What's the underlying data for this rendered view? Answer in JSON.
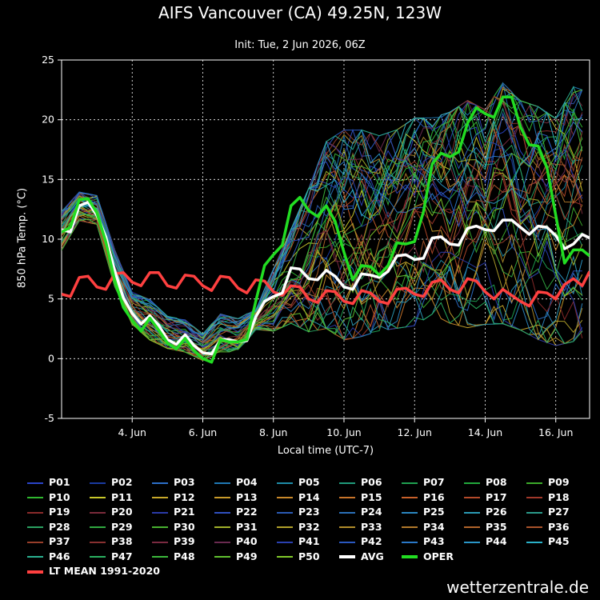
{
  "title": "AIFS Vancouver (CA) 49.25N, 123W",
  "subtitle": "Init: Tue, 2 Jun 2026, 06Z",
  "footer": "wetterzentrale.de",
  "chart_data": {
    "type": "line",
    "xlabel": "Local time (UTC-7)",
    "ylabel": "850 hPa Temp. (°C)",
    "x_start": "2026-06-02T00:00",
    "x_end": "2026-06-16T23:00",
    "x_ticks": [
      "4. Jun",
      "6. Jun",
      "8. Jun",
      "10. Jun",
      "12. Jun",
      "14. Jun",
      "16. Jun"
    ],
    "x_tick_dates": [
      "2026-06-04T00:00",
      "2026-06-06T00:00",
      "2026-06-08T00:00",
      "2026-06-10T00:00",
      "2026-06-12T00:00",
      "2026-06-14T00:00",
      "2026-06-16T00:00"
    ],
    "ylim": [
      -5,
      25
    ],
    "y_ticks": [
      -5,
      0,
      5,
      10,
      15,
      20,
      25
    ],
    "grid": "dashed",
    "legend_position": "bottom",
    "highlight_series": [
      {
        "name": "LT MEAN 1991-2020",
        "color": "#ff4040",
        "x": [
          "2026-06-02T00:00",
          "2026-06-02T06:00",
          "2026-06-02T12:00",
          "2026-06-02T18:00",
          "2026-06-03T00:00",
          "2026-06-03T06:00",
          "2026-06-03T12:00",
          "2026-06-03T18:00",
          "2026-06-04T00:00",
          "2026-06-04T06:00",
          "2026-06-04T12:00",
          "2026-06-04T18:00",
          "2026-06-05T00:00",
          "2026-06-05T06:00",
          "2026-06-05T12:00",
          "2026-06-05T18:00",
          "2026-06-06T00:00",
          "2026-06-06T06:00",
          "2026-06-06T12:00",
          "2026-06-06T18:00",
          "2026-06-07T00:00",
          "2026-06-07T06:00",
          "2026-06-07T12:00",
          "2026-06-07T18:00",
          "2026-06-08T00:00",
          "2026-06-08T06:00",
          "2026-06-08T12:00",
          "2026-06-08T18:00",
          "2026-06-09T00:00",
          "2026-06-09T06:00",
          "2026-06-09T12:00",
          "2026-06-09T18:00",
          "2026-06-10T00:00",
          "2026-06-10T06:00",
          "2026-06-10T12:00",
          "2026-06-10T18:00",
          "2026-06-11T00:00",
          "2026-06-11T06:00",
          "2026-06-11T12:00",
          "2026-06-11T18:00",
          "2026-06-12T00:00",
          "2026-06-12T06:00",
          "2026-06-12T12:00",
          "2026-06-12T18:00",
          "2026-06-13T00:00",
          "2026-06-13T06:00",
          "2026-06-13T12:00",
          "2026-06-13T18:00",
          "2026-06-14T00:00",
          "2026-06-14T06:00",
          "2026-06-14T12:00",
          "2026-06-14T18:00",
          "2026-06-15T00:00",
          "2026-06-15T06:00",
          "2026-06-15T12:00",
          "2026-06-15T18:00",
          "2026-06-16T00:00",
          "2026-06-16T06:00",
          "2026-06-16T12:00",
          "2026-06-16T18:00",
          "2026-06-16T23:00"
        ],
        "y": [
          5.4,
          5.2,
          6.8,
          6.9,
          6.0,
          5.8,
          7.1,
          7.2,
          6.4,
          6.1,
          7.2,
          7.2,
          6.1,
          5.9,
          7.0,
          6.9,
          6.1,
          5.7,
          6.9,
          6.8,
          5.9,
          5.5,
          6.6,
          6.5,
          5.6,
          5.3,
          6.1,
          6.0,
          5.0,
          4.7,
          5.7,
          5.6,
          4.8,
          4.6,
          5.7,
          5.5,
          4.8,
          4.6,
          5.8,
          5.9,
          5.4,
          5.2,
          6.4,
          6.6,
          5.8,
          5.5,
          6.7,
          6.5,
          5.6,
          5.0,
          5.8,
          5.3,
          4.8,
          4.4,
          5.6,
          5.5,
          5.0,
          6.2,
          6.7,
          6.1,
          7.3
        ]
      },
      {
        "name": "AVG",
        "color": "#ffffff",
        "x": [
          "2026-06-02T00:00",
          "2026-06-02T06:00",
          "2026-06-02T12:00",
          "2026-06-02T18:00",
          "2026-06-03T00:00",
          "2026-06-03T06:00",
          "2026-06-03T12:00",
          "2026-06-03T18:00",
          "2026-06-04T00:00",
          "2026-06-04T06:00",
          "2026-06-04T12:00",
          "2026-06-04T18:00",
          "2026-06-05T00:00",
          "2026-06-05T06:00",
          "2026-06-05T12:00",
          "2026-06-05T18:00",
          "2026-06-06T00:00",
          "2026-06-06T06:00",
          "2026-06-06T12:00",
          "2026-06-06T18:00",
          "2026-06-07T00:00",
          "2026-06-07T06:00",
          "2026-06-07T12:00",
          "2026-06-07T18:00",
          "2026-06-08T00:00",
          "2026-06-08T06:00",
          "2026-06-08T12:00",
          "2026-06-08T18:00",
          "2026-06-09T00:00",
          "2026-06-09T06:00",
          "2026-06-09T12:00",
          "2026-06-09T18:00",
          "2026-06-10T00:00",
          "2026-06-10T06:00",
          "2026-06-10T12:00",
          "2026-06-10T18:00",
          "2026-06-11T00:00",
          "2026-06-11T06:00",
          "2026-06-11T12:00",
          "2026-06-11T18:00",
          "2026-06-12T00:00",
          "2026-06-12T06:00",
          "2026-06-12T12:00",
          "2026-06-12T18:00",
          "2026-06-13T00:00",
          "2026-06-13T06:00",
          "2026-06-13T12:00",
          "2026-06-13T18:00",
          "2026-06-14T00:00",
          "2026-06-14T06:00",
          "2026-06-14T12:00",
          "2026-06-14T18:00",
          "2026-06-15T00:00",
          "2026-06-15T06:00",
          "2026-06-15T12:00",
          "2026-06-15T18:00",
          "2026-06-16T00:00",
          "2026-06-16T06:00",
          "2026-06-16T12:00",
          "2026-06-16T18:00",
          "2026-06-16T23:00"
        ],
        "y": [
          10.8,
          10.6,
          12.8,
          13.1,
          12.0,
          10.2,
          7.4,
          5.1,
          3.8,
          2.9,
          3.6,
          2.8,
          1.6,
          1.2,
          2.0,
          1.1,
          0.5,
          0.4,
          1.6,
          1.6,
          1.4,
          1.5,
          3.5,
          4.8,
          5.2,
          5.5,
          7.6,
          7.5,
          6.7,
          6.6,
          7.4,
          6.9,
          6.0,
          5.8,
          7.1,
          7.0,
          6.8,
          7.3,
          8.6,
          8.7,
          8.3,
          8.4,
          10.1,
          10.2,
          9.6,
          9.5,
          10.9,
          11.1,
          10.8,
          10.7,
          11.6,
          11.6,
          11.0,
          10.4,
          11.1,
          11.0,
          10.3,
          9.2,
          9.6,
          10.4,
          10.1
        ]
      },
      {
        "name": "OPER",
        "color": "#22dd22",
        "x": [
          "2026-06-02T00:00",
          "2026-06-02T06:00",
          "2026-06-02T12:00",
          "2026-06-02T18:00",
          "2026-06-03T00:00",
          "2026-06-03T06:00",
          "2026-06-03T12:00",
          "2026-06-03T18:00",
          "2026-06-04T00:00",
          "2026-06-04T06:00",
          "2026-06-04T12:00",
          "2026-06-04T18:00",
          "2026-06-05T00:00",
          "2026-06-05T06:00",
          "2026-06-05T12:00",
          "2026-06-05T18:00",
          "2026-06-06T00:00",
          "2026-06-06T06:00",
          "2026-06-06T12:00",
          "2026-06-06T18:00",
          "2026-06-07T00:00",
          "2026-06-07T06:00",
          "2026-06-07T12:00",
          "2026-06-07T18:00",
          "2026-06-08T00:00",
          "2026-06-08T06:00",
          "2026-06-08T12:00",
          "2026-06-08T18:00",
          "2026-06-09T00:00",
          "2026-06-09T06:00",
          "2026-06-09T12:00",
          "2026-06-09T18:00",
          "2026-06-10T00:00",
          "2026-06-10T06:00",
          "2026-06-10T12:00",
          "2026-06-10T18:00",
          "2026-06-11T00:00",
          "2026-06-11T06:00",
          "2026-06-11T12:00",
          "2026-06-11T18:00",
          "2026-06-12T00:00",
          "2026-06-12T06:00",
          "2026-06-12T12:00",
          "2026-06-12T18:00",
          "2026-06-13T00:00",
          "2026-06-13T06:00",
          "2026-06-13T12:00",
          "2026-06-13T18:00",
          "2026-06-14T00:00",
          "2026-06-14T06:00",
          "2026-06-14T12:00",
          "2026-06-14T18:00",
          "2026-06-15T00:00",
          "2026-06-15T06:00",
          "2026-06-15T12:00",
          "2026-06-15T18:00",
          "2026-06-16T00:00",
          "2026-06-16T06:00",
          "2026-06-16T12:00",
          "2026-06-16T18:00",
          "2026-06-16T23:00"
        ],
        "y": [
          10.6,
          11.0,
          13.3,
          13.4,
          12.2,
          9.8,
          6.6,
          4.3,
          3.2,
          2.3,
          3.4,
          2.4,
          1.3,
          0.8,
          1.7,
          0.7,
          0.0,
          -0.3,
          1.6,
          1.4,
          1.4,
          1.6,
          4.8,
          7.8,
          8.7,
          9.5,
          12.8,
          13.5,
          12.4,
          11.9,
          12.8,
          11.5,
          8.9,
          6.6,
          7.8,
          7.7,
          7.0,
          7.8,
          9.7,
          9.6,
          9.8,
          12.3,
          16.3,
          17.2,
          16.9,
          17.3,
          19.7,
          21.0,
          20.5,
          20.2,
          21.9,
          21.9,
          19.4,
          17.9,
          17.8,
          16.0,
          12.0,
          8.0,
          9.1,
          9.1,
          8.6
        ]
      }
    ],
    "ensemble_envelope": {
      "x": [
        "2026-06-02T00:00",
        "2026-06-02T12:00",
        "2026-06-03T00:00",
        "2026-06-03T12:00",
        "2026-06-04T00:00",
        "2026-06-04T12:00",
        "2026-06-05T00:00",
        "2026-06-05T12:00",
        "2026-06-06T00:00",
        "2026-06-06T12:00",
        "2026-06-07T00:00",
        "2026-06-07T12:00",
        "2026-06-08T00:00",
        "2026-06-08T12:00",
        "2026-06-09T00:00",
        "2026-06-09T12:00",
        "2026-06-10T00:00",
        "2026-06-10T12:00",
        "2026-06-11T00:00",
        "2026-06-11T12:00",
        "2026-06-12T00:00",
        "2026-06-12T12:00",
        "2026-06-13T00:00",
        "2026-06-13T12:00",
        "2026-06-14T00:00",
        "2026-06-14T12:00",
        "2026-06-15T00:00",
        "2026-06-15T12:00",
        "2026-06-16T00:00",
        "2026-06-16T12:00",
        "2026-06-16T23:00"
      ],
      "min": [
        9.0,
        11.5,
        11.2,
        6.0,
        2.8,
        1.5,
        0.8,
        0.5,
        -0.2,
        0.5,
        0.5,
        2.4,
        2.2,
        2.8,
        2.0,
        2.2,
        1.2,
        1.5,
        2.0,
        2.2,
        2.4,
        3.4,
        2.6,
        2.2,
        2.5,
        2.5,
        2.0,
        1.2,
        0.7,
        1.0,
        1.5
      ],
      "max": [
        12.4,
        14.0,
        13.7,
        9.2,
        5.6,
        5.0,
        3.6,
        3.3,
        2.1,
        3.8,
        3.4,
        4.2,
        7.6,
        11.0,
        14.5,
        18.5,
        19.5,
        19.5,
        19.0,
        19.5,
        20.5,
        20.5,
        21.0,
        22.0,
        21.2,
        23.5,
        22.0,
        21.5,
        20.5,
        23.2,
        22.7
      ]
    },
    "members": [
      "P01",
      "P02",
      "P03",
      "P04",
      "P05",
      "P06",
      "P07",
      "P08",
      "P09",
      "P10",
      "P11",
      "P12",
      "P13",
      "P14",
      "P15",
      "P16",
      "P17",
      "P18",
      "P19",
      "P20",
      "P21",
      "P22",
      "P23",
      "P24",
      "P25",
      "P26",
      "P27",
      "P28",
      "P29",
      "P30",
      "P31",
      "P32",
      "P33",
      "P34",
      "P35",
      "P36",
      "P37",
      "P38",
      "P39",
      "P40",
      "P41",
      "P42",
      "P43",
      "P44",
      "P45",
      "P46",
      "P47",
      "P48",
      "P49",
      "P50"
    ],
    "member_colors": [
      "#2a44c8",
      "#1a3aa0",
      "#2c6fc8",
      "#1f78b4",
      "#1e8ca8",
      "#1f9a7a",
      "#1fa050",
      "#22a83c",
      "#3caa2a",
      "#2fb82f",
      "#c8c82a",
      "#c8a82a",
      "#c89a2a",
      "#c8882a",
      "#c8742a",
      "#c8602a",
      "#b44a2a",
      "#a0382a",
      "#8a2a2a",
      "#7a2a3a",
      "#2a3aa8",
      "#3050c0",
      "#2a5ab4",
      "#2a70b8",
      "#2a86c0",
      "#2a9ab4",
      "#2a9a8a",
      "#2aa060",
      "#30a840",
      "#48b030",
      "#a0b02a",
      "#b0a02a",
      "#b08c2a",
      "#b0782a",
      "#b0642a",
      "#a8522a",
      "#983e2a",
      "#883030",
      "#7a2a40",
      "#6a2a50",
      "#2a40b0",
      "#2a58c0",
      "#2a78c8",
      "#2a96c8",
      "#2ab0c8",
      "#2ab090",
      "#2ab060",
      "#3cb83c",
      "#60c030",
      "#80c82a"
    ],
    "legend": [
      "P01",
      "P02",
      "P03",
      "P04",
      "P05",
      "P06",
      "P07",
      "P08",
      "P09",
      "P10",
      "P11",
      "P12",
      "P13",
      "P14",
      "P15",
      "P16",
      "P17",
      "P18",
      "P19",
      "P20",
      "P21",
      "P22",
      "P23",
      "P24",
      "P25",
      "P26",
      "P27",
      "P28",
      "P29",
      "P30",
      "P31",
      "P32",
      "P33",
      "P34",
      "P35",
      "P36",
      "P37",
      "P38",
      "P39",
      "P40",
      "P41",
      "P42",
      "P43",
      "P44",
      "P45",
      "P46",
      "P47",
      "P48",
      "P49",
      "P50",
      "AVG",
      "OPER",
      "LT MEAN 1991-2020"
    ]
  }
}
